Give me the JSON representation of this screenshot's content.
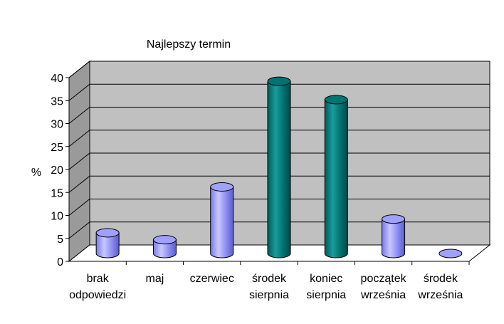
{
  "chart_data": {
    "type": "bar",
    "title": "Najlepszy termin",
    "ylabel": "%",
    "xlabel": "",
    "ylim": [
      0,
      40
    ],
    "yticks": [
      "0",
      "5",
      "10",
      "15",
      "20",
      "25",
      "30",
      "35",
      "40"
    ],
    "grid": true,
    "legend": "none",
    "categories": [
      [
        "brak",
        "odpowiedzi"
      ],
      [
        "maj"
      ],
      [
        "czerwiec"
      ],
      [
        "środek",
        "sierpnia"
      ],
      [
        "koniec",
        "sierpnia"
      ],
      [
        "początek",
        "września"
      ],
      [
        "środek",
        "września"
      ]
    ],
    "values": [
      4.5,
      3,
      14.5,
      37.5,
      33.5,
      7.5,
      0
    ],
    "bar_colors": [
      "#9999ff",
      "#9999ff",
      "#9999ff",
      "#008080",
      "#008080",
      "#9999ff",
      "#9999ff"
    ],
    "colors": {
      "plot_wall": "#c0c0c0",
      "floor": "#ffffff",
      "grid": "#000000"
    }
  }
}
